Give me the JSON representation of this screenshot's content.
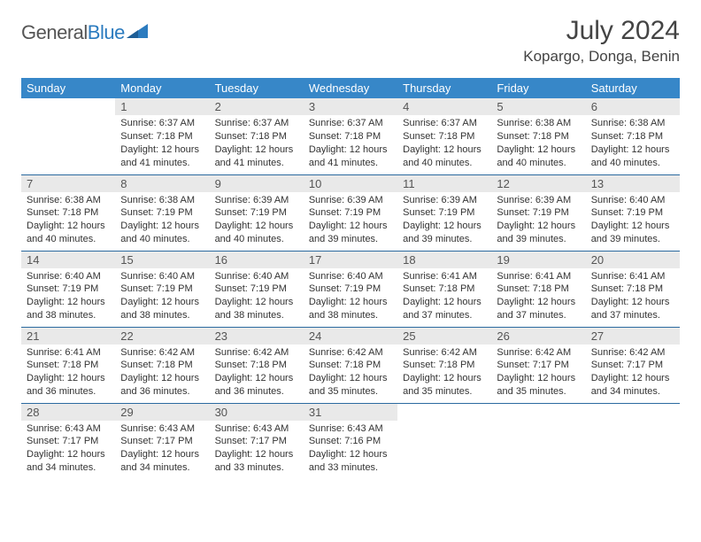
{
  "brand": {
    "first": "General",
    "second": "Blue"
  },
  "title": "July 2024",
  "location": "Kopargo, Donga, Benin",
  "colors": {
    "header_bg": "#3787c8",
    "header_text": "#ffffff",
    "daynum_bg": "#e9e9e9",
    "row_border": "#2b6aa0",
    "title_color": "#444444",
    "body_text": "#333333",
    "logo_gray": "#555555",
    "logo_blue": "#2b7bbf"
  },
  "day_labels": [
    "Sunday",
    "Monday",
    "Tuesday",
    "Wednesday",
    "Thursday",
    "Friday",
    "Saturday"
  ],
  "weeks": [
    [
      null,
      {
        "n": "1",
        "sr": "6:37 AM",
        "ss": "7:18 PM",
        "dl": "12 hours and 41 minutes."
      },
      {
        "n": "2",
        "sr": "6:37 AM",
        "ss": "7:18 PM",
        "dl": "12 hours and 41 minutes."
      },
      {
        "n": "3",
        "sr": "6:37 AM",
        "ss": "7:18 PM",
        "dl": "12 hours and 41 minutes."
      },
      {
        "n": "4",
        "sr": "6:37 AM",
        "ss": "7:18 PM",
        "dl": "12 hours and 40 minutes."
      },
      {
        "n": "5",
        "sr": "6:38 AM",
        "ss": "7:18 PM",
        "dl": "12 hours and 40 minutes."
      },
      {
        "n": "6",
        "sr": "6:38 AM",
        "ss": "7:18 PM",
        "dl": "12 hours and 40 minutes."
      }
    ],
    [
      {
        "n": "7",
        "sr": "6:38 AM",
        "ss": "7:18 PM",
        "dl": "12 hours and 40 minutes."
      },
      {
        "n": "8",
        "sr": "6:38 AM",
        "ss": "7:19 PM",
        "dl": "12 hours and 40 minutes."
      },
      {
        "n": "9",
        "sr": "6:39 AM",
        "ss": "7:19 PM",
        "dl": "12 hours and 40 minutes."
      },
      {
        "n": "10",
        "sr": "6:39 AM",
        "ss": "7:19 PM",
        "dl": "12 hours and 39 minutes."
      },
      {
        "n": "11",
        "sr": "6:39 AM",
        "ss": "7:19 PM",
        "dl": "12 hours and 39 minutes."
      },
      {
        "n": "12",
        "sr": "6:39 AM",
        "ss": "7:19 PM",
        "dl": "12 hours and 39 minutes."
      },
      {
        "n": "13",
        "sr": "6:40 AM",
        "ss": "7:19 PM",
        "dl": "12 hours and 39 minutes."
      }
    ],
    [
      {
        "n": "14",
        "sr": "6:40 AM",
        "ss": "7:19 PM",
        "dl": "12 hours and 38 minutes."
      },
      {
        "n": "15",
        "sr": "6:40 AM",
        "ss": "7:19 PM",
        "dl": "12 hours and 38 minutes."
      },
      {
        "n": "16",
        "sr": "6:40 AM",
        "ss": "7:19 PM",
        "dl": "12 hours and 38 minutes."
      },
      {
        "n": "17",
        "sr": "6:40 AM",
        "ss": "7:19 PM",
        "dl": "12 hours and 38 minutes."
      },
      {
        "n": "18",
        "sr": "6:41 AM",
        "ss": "7:18 PM",
        "dl": "12 hours and 37 minutes."
      },
      {
        "n": "19",
        "sr": "6:41 AM",
        "ss": "7:18 PM",
        "dl": "12 hours and 37 minutes."
      },
      {
        "n": "20",
        "sr": "6:41 AM",
        "ss": "7:18 PM",
        "dl": "12 hours and 37 minutes."
      }
    ],
    [
      {
        "n": "21",
        "sr": "6:41 AM",
        "ss": "7:18 PM",
        "dl": "12 hours and 36 minutes."
      },
      {
        "n": "22",
        "sr": "6:42 AM",
        "ss": "7:18 PM",
        "dl": "12 hours and 36 minutes."
      },
      {
        "n": "23",
        "sr": "6:42 AM",
        "ss": "7:18 PM",
        "dl": "12 hours and 36 minutes."
      },
      {
        "n": "24",
        "sr": "6:42 AM",
        "ss": "7:18 PM",
        "dl": "12 hours and 35 minutes."
      },
      {
        "n": "25",
        "sr": "6:42 AM",
        "ss": "7:18 PM",
        "dl": "12 hours and 35 minutes."
      },
      {
        "n": "26",
        "sr": "6:42 AM",
        "ss": "7:17 PM",
        "dl": "12 hours and 35 minutes."
      },
      {
        "n": "27",
        "sr": "6:42 AM",
        "ss": "7:17 PM",
        "dl": "12 hours and 34 minutes."
      }
    ],
    [
      {
        "n": "28",
        "sr": "6:43 AM",
        "ss": "7:17 PM",
        "dl": "12 hours and 34 minutes."
      },
      {
        "n": "29",
        "sr": "6:43 AM",
        "ss": "7:17 PM",
        "dl": "12 hours and 34 minutes."
      },
      {
        "n": "30",
        "sr": "6:43 AM",
        "ss": "7:17 PM",
        "dl": "12 hours and 33 minutes."
      },
      {
        "n": "31",
        "sr": "6:43 AM",
        "ss": "7:16 PM",
        "dl": "12 hours and 33 minutes."
      },
      null,
      null,
      null
    ]
  ],
  "labels": {
    "sunrise": "Sunrise:",
    "sunset": "Sunset:",
    "daylight": "Daylight:"
  }
}
